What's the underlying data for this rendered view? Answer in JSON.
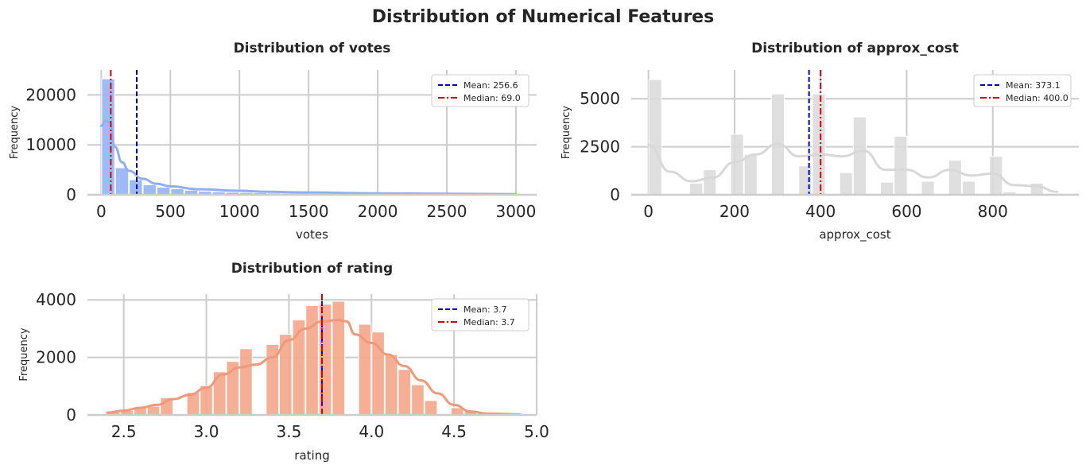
{
  "suptitle": "Distribution of Numerical Features",
  "chart_data": [
    {
      "type": "histogram",
      "id": "votes",
      "title": "Distribution of votes",
      "xlabel": "votes",
      "ylabel": "Frequency",
      "xlim": [
        -100,
        3150
      ],
      "ylim": [
        0,
        25000
      ],
      "xticks": [
        0,
        500,
        1000,
        1500,
        2000,
        2500,
        3000
      ],
      "yticks": [
        0,
        10000,
        20000
      ],
      "color": "#94b4f8",
      "kde_color": "#91aef5",
      "bins": {
        "edges": [
          0,
          100,
          200,
          300,
          400,
          500,
          600,
          700,
          800,
          900,
          1000,
          1100,
          1200,
          1300,
          1400,
          1500,
          1600,
          1700,
          1800,
          1900,
          2000,
          2100,
          2200,
          2300,
          2400,
          2500,
          2600,
          2700,
          2800,
          2900,
          3000
        ],
        "counts": [
          23200,
          5400,
          3000,
          2000,
          1500,
          1200,
          900,
          700,
          600,
          500,
          450,
          400,
          350,
          300,
          280,
          250,
          230,
          210,
          200,
          180,
          170,
          160,
          150,
          140,
          130,
          120,
          110,
          100,
          95,
          90
        ]
      },
      "kde": [
        [
          0,
          13800
        ],
        [
          30,
          14800
        ],
        [
          60,
          14500
        ],
        [
          100,
          9600
        ],
        [
          150,
          6500
        ],
        [
          200,
          4800
        ],
        [
          300,
          3200
        ],
        [
          400,
          2200
        ],
        [
          500,
          1700
        ],
        [
          700,
          1100
        ],
        [
          1000,
          800
        ],
        [
          1200,
          600
        ],
        [
          1500,
          450
        ],
        [
          2000,
          280
        ],
        [
          2500,
          200
        ],
        [
          3000,
          120
        ]
      ],
      "mean": 256.6,
      "median": 69.0,
      "legend": {
        "mean_label": "Mean: 256.6",
        "median_label": "Median: 69.0",
        "loc": "upper right"
      }
    },
    {
      "type": "histogram",
      "id": "approx_cost",
      "title": "Distribution of approx_cost",
      "xlabel": "approx_cost",
      "ylabel": "Frequency",
      "xlim": [
        -40,
        1000
      ],
      "ylim": [
        0,
        6500
      ],
      "xticks": [
        0,
        200,
        400,
        600,
        800
      ],
      "yticks": [
        0,
        2500,
        5000
      ],
      "color": "#dcdcdc",
      "kde_color": "#d8d8d8",
      "bins": {
        "edges": [
          0,
          31.7,
          63.3,
          95,
          126.7,
          158.3,
          190,
          221.7,
          253.3,
          285,
          316.7,
          348.3,
          380,
          411.7,
          443.3,
          475,
          506.7,
          538.3,
          570,
          601.7,
          633.3,
          665,
          696.7,
          728.3,
          760,
          791.7,
          823.3,
          855,
          886.7,
          918.3,
          950
        ],
        "counts": [
          6000,
          0,
          0,
          600,
          1300,
          0,
          3150,
          2100,
          0,
          5250,
          0,
          1500,
          5250,
          0,
          1150,
          4050,
          0,
          650,
          3050,
          0,
          700,
          0,
          1800,
          700,
          0,
          2000,
          150,
          0,
          600,
          0
        ]
      },
      "kde": [
        [
          0,
          2600
        ],
        [
          50,
          1200
        ],
        [
          100,
          700
        ],
        [
          150,
          900
        ],
        [
          200,
          1700
        ],
        [
          250,
          2100
        ],
        [
          300,
          2650
        ],
        [
          350,
          2000
        ],
        [
          400,
          2100
        ],
        [
          450,
          2000
        ],
        [
          500,
          2300
        ],
        [
          550,
          1300
        ],
        [
          600,
          1300
        ],
        [
          650,
          900
        ],
        [
          700,
          1300
        ],
        [
          750,
          1000
        ],
        [
          800,
          1100
        ],
        [
          850,
          500
        ],
        [
          900,
          450
        ],
        [
          950,
          150
        ]
      ],
      "mean": 373.1,
      "median": 400.0,
      "legend": {
        "mean_label": "Mean: 373.1",
        "median_label": "Median: 400.0",
        "loc": "upper right"
      }
    },
    {
      "type": "histogram",
      "id": "rating",
      "title": "Distribution of rating",
      "xlabel": "rating",
      "ylabel": "Frequency",
      "xlim": [
        2.28,
        5.0
      ],
      "ylim": [
        0,
        4200
      ],
      "xticks": [
        2.5,
        3.0,
        3.5,
        4.0,
        4.5,
        5.0
      ],
      "xtick_labels": [
        "2.5",
        "3.0",
        "3.5",
        "4.0",
        "4.5",
        "5.0"
      ],
      "yticks": [
        0,
        2000,
        4000
      ],
      "color": "#f5a688",
      "kde_color": "#f0987a",
      "bins": {
        "edges": [
          2.4,
          2.48,
          2.56,
          2.64,
          2.72,
          2.8,
          2.88,
          2.96,
          3.04,
          3.12,
          3.2,
          3.28,
          3.36,
          3.44,
          3.52,
          3.6,
          3.68,
          3.76,
          3.84,
          3.92,
          4.0,
          4.08,
          4.16,
          4.24,
          4.32,
          4.4,
          4.48,
          4.56,
          4.64,
          4.72,
          4.8,
          4.88,
          4.96
        ],
        "counts": [
          100,
          150,
          250,
          300,
          600,
          0,
          780,
          1020,
          1500,
          1860,
          2300,
          0,
          2450,
          2800,
          3300,
          3800,
          3850,
          3950,
          0,
          3150,
          2880,
          2100,
          1580,
          1050,
          500,
          0,
          250,
          120,
          50,
          40,
          30,
          20
        ]
      },
      "kde": [
        [
          2.4,
          80
        ],
        [
          2.5,
          150
        ],
        [
          2.6,
          250
        ],
        [
          2.7,
          350
        ],
        [
          2.8,
          550
        ],
        [
          2.9,
          700
        ],
        [
          3.0,
          950
        ],
        [
          3.1,
          1400
        ],
        [
          3.2,
          1650
        ],
        [
          3.3,
          1750
        ],
        [
          3.4,
          2000
        ],
        [
          3.5,
          2600
        ],
        [
          3.6,
          3000
        ],
        [
          3.7,
          3250
        ],
        [
          3.8,
          3300
        ],
        [
          3.85,
          3250
        ],
        [
          3.9,
          2800
        ],
        [
          4.0,
          2500
        ],
        [
          4.1,
          2100
        ],
        [
          4.2,
          1700
        ],
        [
          4.3,
          1200
        ],
        [
          4.4,
          750
        ],
        [
          4.5,
          350
        ],
        [
          4.6,
          120
        ],
        [
          4.7,
          50
        ],
        [
          4.9,
          20
        ]
      ],
      "mean": 3.7,
      "median": 3.7,
      "legend": {
        "mean_label": "Mean: 3.7",
        "median_label": "Median: 3.7",
        "loc": "upper right"
      }
    }
  ]
}
